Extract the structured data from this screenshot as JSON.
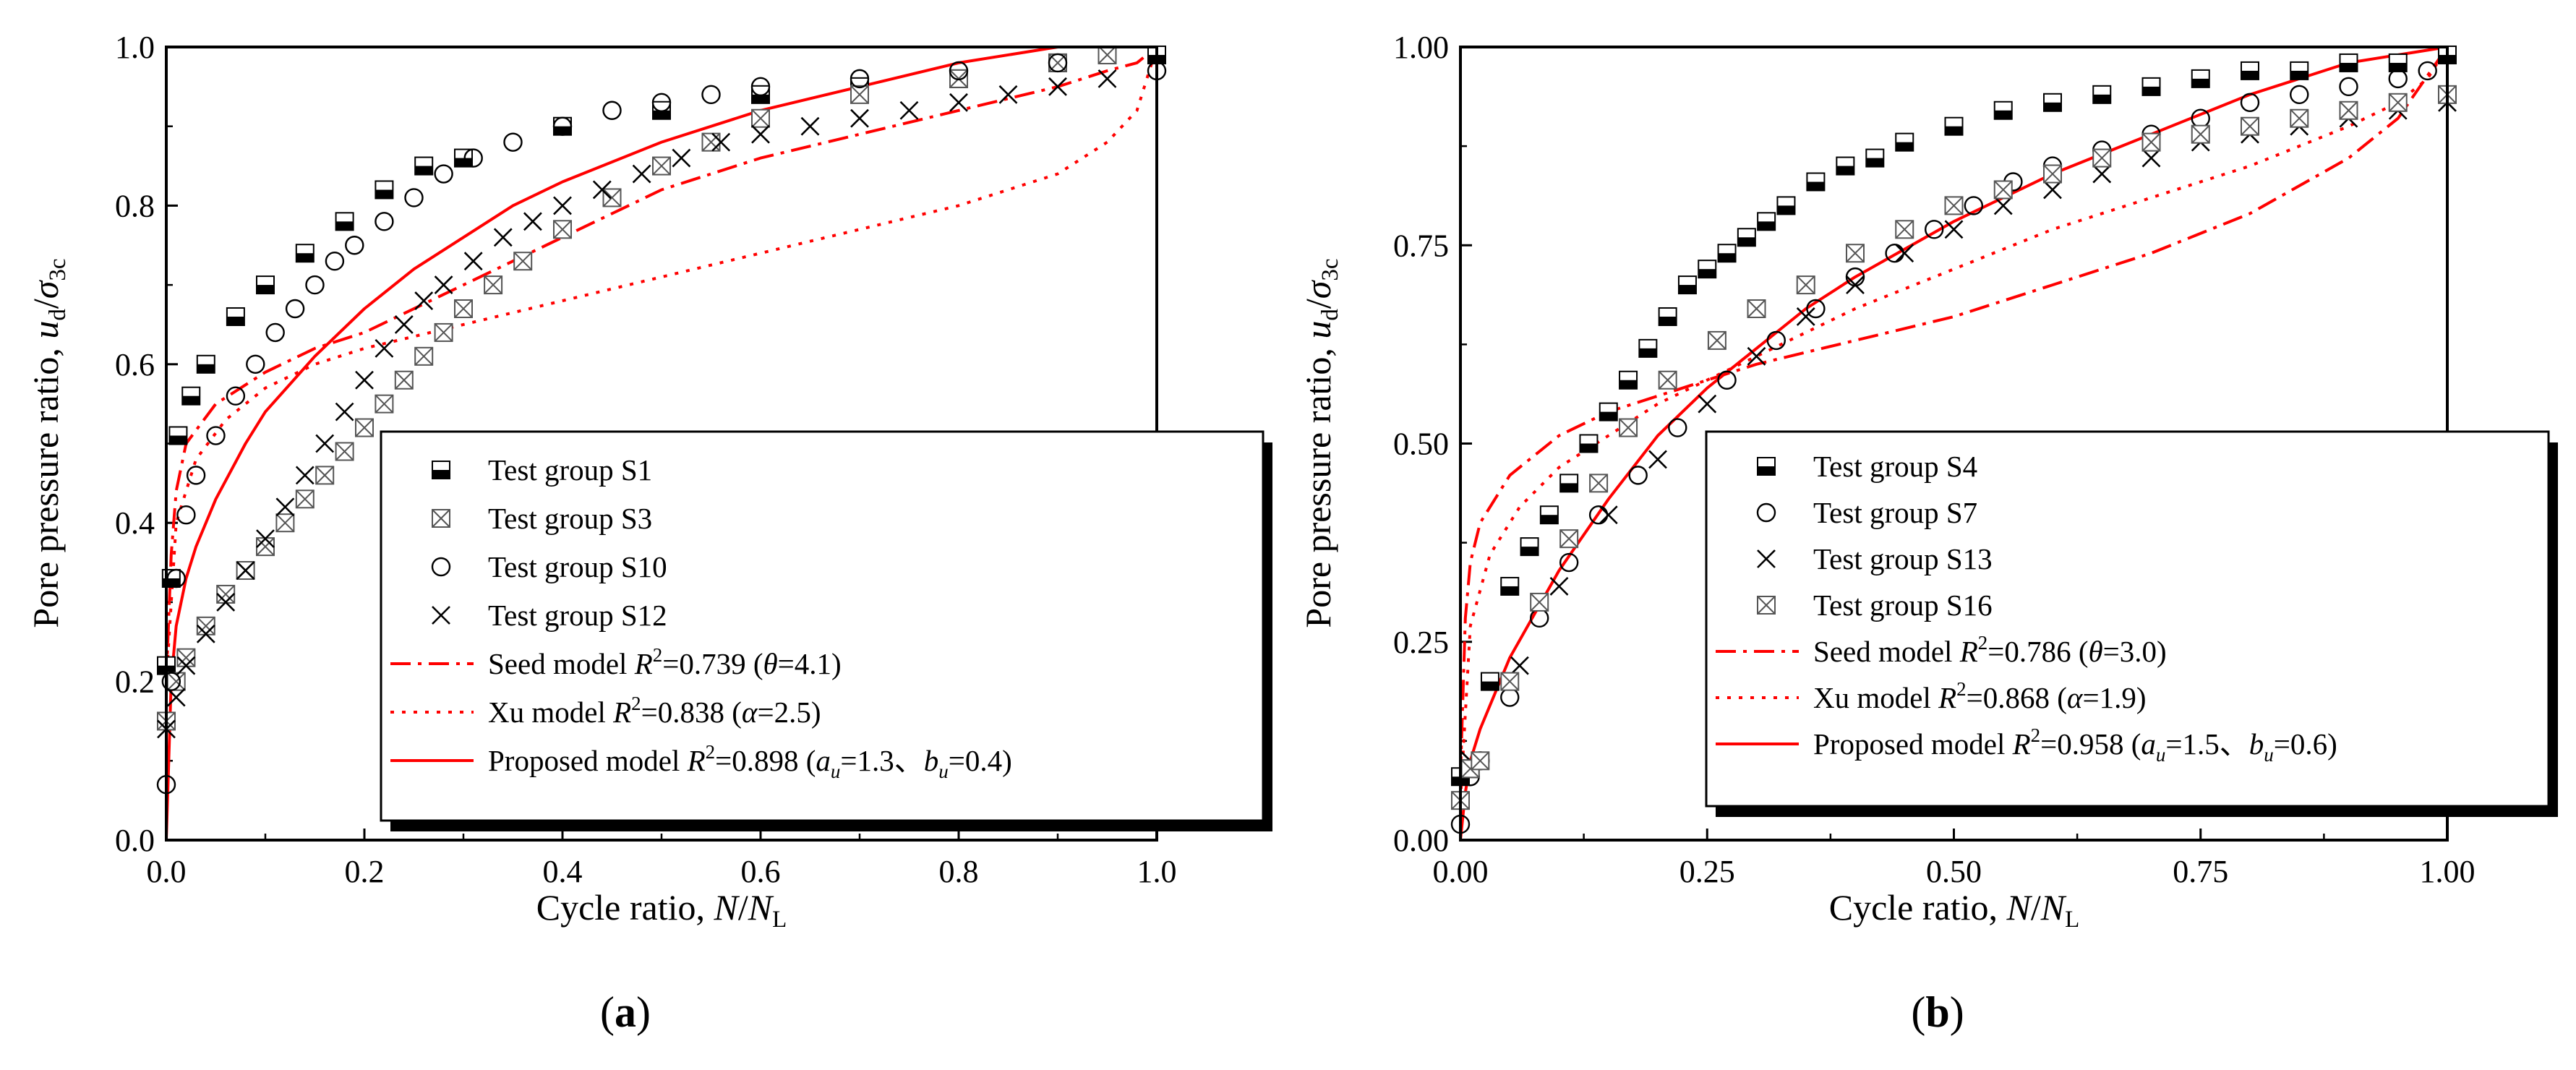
{
  "chart_data": [
    {
      "type": "scatter",
      "panel_label": "a",
      "xlabel": "Cycle ratio, N/N_L",
      "ylabel": "Pore pressure ratio, u_d/σ_3c",
      "xlim": [
        0,
        1
      ],
      "ylim": [
        0,
        1
      ],
      "xticks": [
        "0.0",
        "0.2",
        "0.4",
        "0.6",
        "0.8",
        "1.0"
      ],
      "yticks": [
        "0.0",
        "0.2",
        "0.4",
        "0.6",
        "0.8",
        "1.0"
      ],
      "legend_position": "lower-right",
      "series": [
        {
          "name": "Test group S1",
          "marker": "halfsquare",
          "x": [
            0,
            0.005,
            0.012,
            0.025,
            0.04,
            0.07,
            0.1,
            0.14,
            0.18,
            0.22,
            0.26,
            0.3,
            0.4,
            0.5,
            0.6,
            0.7,
            0.8,
            0.9,
            1.0
          ],
          "y": [
            0.22,
            0.33,
            0.51,
            0.56,
            0.6,
            0.66,
            0.7,
            0.74,
            0.78,
            0.82,
            0.85,
            0.86,
            0.9,
            0.92,
            0.94,
            0.95,
            0.96,
            0.98,
            0.99
          ]
        },
        {
          "name": "Test group S3",
          "marker": "xsquare",
          "x": [
            0,
            0.01,
            0.02,
            0.04,
            0.06,
            0.08,
            0.1,
            0.12,
            0.14,
            0.16,
            0.18,
            0.2,
            0.22,
            0.24,
            0.26,
            0.28,
            0.3,
            0.33,
            0.36,
            0.4,
            0.45,
            0.5,
            0.55,
            0.6,
            0.7,
            0.8,
            0.9,
            0.95
          ],
          "y": [
            0.15,
            0.2,
            0.23,
            0.27,
            0.31,
            0.34,
            0.37,
            0.4,
            0.43,
            0.46,
            0.49,
            0.52,
            0.55,
            0.58,
            0.61,
            0.64,
            0.67,
            0.7,
            0.73,
            0.77,
            0.81,
            0.85,
            0.88,
            0.91,
            0.94,
            0.96,
            0.98,
            0.99
          ]
        },
        {
          "name": "Test group S10",
          "marker": "circle",
          "x": [
            0,
            0.005,
            0.01,
            0.02,
            0.03,
            0.05,
            0.07,
            0.09,
            0.11,
            0.13,
            0.15,
            0.17,
            0.19,
            0.22,
            0.25,
            0.28,
            0.31,
            0.35,
            0.4,
            0.45,
            0.5,
            0.55,
            0.6,
            0.7,
            0.8,
            0.9,
            1.0
          ],
          "y": [
            0.07,
            0.2,
            0.33,
            0.41,
            0.46,
            0.51,
            0.56,
            0.6,
            0.64,
            0.67,
            0.7,
            0.73,
            0.75,
            0.78,
            0.81,
            0.84,
            0.86,
            0.88,
            0.9,
            0.92,
            0.93,
            0.94,
            0.95,
            0.96,
            0.97,
            0.98,
            0.97
          ]
        },
        {
          "name": "Test group S12",
          "marker": "cross",
          "x": [
            0,
            0.01,
            0.02,
            0.04,
            0.06,
            0.08,
            0.1,
            0.12,
            0.14,
            0.16,
            0.18,
            0.2,
            0.22,
            0.24,
            0.26,
            0.28,
            0.31,
            0.34,
            0.37,
            0.4,
            0.44,
            0.48,
            0.52,
            0.56,
            0.6,
            0.65,
            0.7,
            0.75,
            0.8,
            0.85,
            0.9,
            0.95
          ],
          "y": [
            0.14,
            0.18,
            0.22,
            0.26,
            0.3,
            0.34,
            0.38,
            0.42,
            0.46,
            0.5,
            0.54,
            0.58,
            0.62,
            0.65,
            0.68,
            0.7,
            0.73,
            0.76,
            0.78,
            0.8,
            0.82,
            0.84,
            0.86,
            0.88,
            0.89,
            0.9,
            0.91,
            0.92,
            0.93,
            0.94,
            0.95,
            0.96
          ]
        }
      ],
      "models": [
        {
          "name": "Seed model",
          "legend_label": "Seed model R²=0.739 (θ=4.1)",
          "r2": 0.739,
          "param": "θ=4.1",
          "style": "dashdot",
          "color": "#ff0000",
          "x": [
            0,
            0.005,
            0.01,
            0.02,
            0.05,
            0.1,
            0.15,
            0.2,
            0.3,
            0.4,
            0.5,
            0.6,
            0.7,
            0.8,
            0.9,
            0.95,
            0.98,
            1.0
          ],
          "y": [
            0.2,
            0.36,
            0.44,
            0.5,
            0.55,
            0.59,
            0.62,
            0.64,
            0.7,
            0.76,
            0.82,
            0.86,
            0.89,
            0.92,
            0.95,
            0.97,
            0.98,
            1.0
          ]
        },
        {
          "name": "Xu model",
          "legend_label": "Xu model R²=0.838 (α=2.5)",
          "r2": 0.838,
          "param": "α=2.5",
          "style": "dotted",
          "color": "#ff0000",
          "x": [
            0,
            0.01,
            0.03,
            0.06,
            0.1,
            0.15,
            0.2,
            0.3,
            0.4,
            0.5,
            0.6,
            0.7,
            0.8,
            0.9,
            0.95,
            0.98,
            1.0
          ],
          "y": [
            0.2,
            0.4,
            0.48,
            0.53,
            0.57,
            0.6,
            0.62,
            0.65,
            0.68,
            0.71,
            0.74,
            0.77,
            0.8,
            0.84,
            0.88,
            0.92,
            1.0
          ]
        },
        {
          "name": "Proposed model",
          "legend_label": "Proposed model R²=0.898 (a_u=1.3、b_u=0.4)",
          "r2": 0.898,
          "param": "a_u=1.3、b_u=0.4",
          "style": "solid",
          "color": "#ff0000",
          "x": [
            0,
            0.005,
            0.01,
            0.02,
            0.03,
            0.05,
            0.08,
            0.1,
            0.15,
            0.2,
            0.25,
            0.3,
            0.35,
            0.4,
            0.5,
            0.6,
            0.7,
            0.8,
            0.9,
            1.0
          ],
          "y": [
            0,
            0.2,
            0.27,
            0.33,
            0.37,
            0.43,
            0.5,
            0.54,
            0.61,
            0.67,
            0.72,
            0.76,
            0.8,
            0.83,
            0.88,
            0.92,
            0.95,
            0.98,
            1.0,
            1.0
          ]
        }
      ]
    },
    {
      "type": "scatter",
      "panel_label": "b",
      "xlabel": "Cycle ratio, N/N_L",
      "ylabel": "Pore pressure ratio, u_d/σ_3c",
      "xlim": [
        0,
        1
      ],
      "ylim": [
        0,
        1
      ],
      "xticks": [
        "0.00",
        "0.25",
        "0.50",
        "0.75",
        "1.00"
      ],
      "yticks": [
        "0.00",
        "0.25",
        "0.50",
        "0.75",
        "1.00"
      ],
      "legend_position": "lower-right",
      "series": [
        {
          "name": "Test group S4",
          "marker": "halfsquare",
          "x": [
            0,
            0.01,
            0.03,
            0.05,
            0.07,
            0.09,
            0.11,
            0.13,
            0.15,
            0.17,
            0.19,
            0.21,
            0.23,
            0.25,
            0.27,
            0.29,
            0.31,
            0.33,
            0.36,
            0.39,
            0.42,
            0.45,
            0.5,
            0.55,
            0.6,
            0.65,
            0.7,
            0.75,
            0.8,
            0.85,
            0.9,
            0.95,
            1.0
          ],
          "y": [
            0.08,
            0.09,
            0.2,
            0.32,
            0.37,
            0.41,
            0.45,
            0.5,
            0.54,
            0.58,
            0.62,
            0.66,
            0.7,
            0.72,
            0.74,
            0.76,
            0.78,
            0.8,
            0.83,
            0.85,
            0.86,
            0.88,
            0.9,
            0.92,
            0.93,
            0.94,
            0.95,
            0.96,
            0.97,
            0.97,
            0.98,
            0.98,
            0.99
          ]
        },
        {
          "name": "Test group S7",
          "marker": "circle",
          "x": [
            0,
            0.01,
            0.02,
            0.05,
            0.08,
            0.11,
            0.14,
            0.18,
            0.22,
            0.27,
            0.32,
            0.36,
            0.4,
            0.44,
            0.48,
            0.52,
            0.56,
            0.6,
            0.65,
            0.7,
            0.75,
            0.8,
            0.85,
            0.9,
            0.95,
            0.98
          ],
          "y": [
            0.02,
            0.08,
            0.1,
            0.18,
            0.28,
            0.35,
            0.41,
            0.46,
            0.52,
            0.58,
            0.63,
            0.67,
            0.71,
            0.74,
            0.77,
            0.8,
            0.83,
            0.85,
            0.87,
            0.89,
            0.91,
            0.93,
            0.94,
            0.95,
            0.96,
            0.97
          ]
        },
        {
          "name": "Test group S13",
          "marker": "cross",
          "x": [
            0,
            0.01,
            0.02,
            0.06,
            0.1,
            0.15,
            0.2,
            0.25,
            0.3,
            0.35,
            0.4,
            0.45,
            0.5,
            0.55,
            0.6,
            0.65,
            0.7,
            0.75,
            0.8,
            0.85,
            0.9,
            0.95,
            1.0
          ],
          "y": [
            0.05,
            0.1,
            0.1,
            0.22,
            0.32,
            0.41,
            0.48,
            0.55,
            0.61,
            0.66,
            0.7,
            0.74,
            0.77,
            0.8,
            0.82,
            0.84,
            0.86,
            0.88,
            0.89,
            0.9,
            0.91,
            0.92,
            0.93
          ]
        },
        {
          "name": "Test group S16",
          "marker": "xsquare",
          "x": [
            0,
            0.01,
            0.02,
            0.05,
            0.08,
            0.11,
            0.14,
            0.17,
            0.21,
            0.26,
            0.3,
            0.35,
            0.4,
            0.45,
            0.5,
            0.55,
            0.6,
            0.65,
            0.7,
            0.75,
            0.8,
            0.85,
            0.9,
            0.95,
            1.0
          ],
          "y": [
            0.05,
            0.09,
            0.1,
            0.2,
            0.3,
            0.38,
            0.45,
            0.52,
            0.58,
            0.63,
            0.67,
            0.7,
            0.74,
            0.77,
            0.8,
            0.82,
            0.84,
            0.86,
            0.88,
            0.89,
            0.9,
            0.91,
            0.92,
            0.93,
            0.94
          ]
        }
      ],
      "models": [
        {
          "name": "Seed model",
          "legend_label": "Seed model R²=0.786 (θ=3.0)",
          "r2": 0.786,
          "param": "θ=3.0",
          "style": "dashdot",
          "color": "#ff0000",
          "x": [
            0,
            0.005,
            0.01,
            0.02,
            0.05,
            0.1,
            0.15,
            0.2,
            0.3,
            0.4,
            0.5,
            0.6,
            0.7,
            0.8,
            0.9,
            0.95,
            1.0
          ],
          "y": [
            0.08,
            0.28,
            0.35,
            0.4,
            0.46,
            0.51,
            0.54,
            0.56,
            0.6,
            0.63,
            0.66,
            0.7,
            0.74,
            0.79,
            0.86,
            0.91,
            1.0
          ]
        },
        {
          "name": "Xu model",
          "legend_label": "Xu model R²=0.868 (α=1.9)",
          "r2": 0.868,
          "param": "α=1.9",
          "style": "dotted",
          "color": "#ff0000",
          "x": [
            0,
            0.01,
            0.03,
            0.06,
            0.1,
            0.15,
            0.2,
            0.3,
            0.4,
            0.5,
            0.6,
            0.7,
            0.8,
            0.9,
            0.95,
            0.98,
            1.0
          ],
          "y": [
            0.05,
            0.27,
            0.36,
            0.42,
            0.47,
            0.51,
            0.55,
            0.61,
            0.67,
            0.72,
            0.77,
            0.81,
            0.85,
            0.9,
            0.93,
            0.96,
            1.0
          ]
        },
        {
          "name": "Proposed model",
          "legend_label": "Proposed model R²=0.958 (a_u=1.5、b_u=0.6)",
          "r2": 0.958,
          "param": "a_u=1.5、b_u=0.6",
          "style": "solid",
          "color": "#ff0000",
          "x": [
            0,
            0.005,
            0.01,
            0.02,
            0.05,
            0.1,
            0.15,
            0.2,
            0.25,
            0.3,
            0.35,
            0.4,
            0.5,
            0.6,
            0.7,
            0.8,
            0.9,
            1.0
          ],
          "y": [
            0,
            0.06,
            0.1,
            0.14,
            0.23,
            0.34,
            0.43,
            0.51,
            0.57,
            0.62,
            0.67,
            0.71,
            0.78,
            0.84,
            0.89,
            0.94,
            0.98,
            1.0
          ]
        }
      ]
    }
  ]
}
